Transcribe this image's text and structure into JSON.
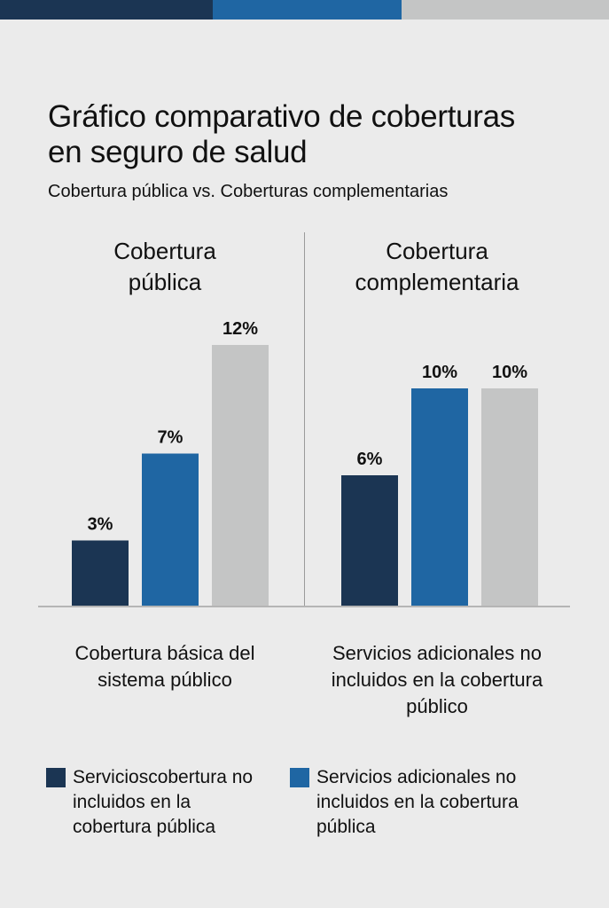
{
  "colors": {
    "dark": "#1b3553",
    "blue": "#1f66a3",
    "gray": "#c4c5c5"
  },
  "header": {
    "title": "Gráfico comparativo de coberturas en seguro de salud",
    "subtitle": "Cobertura pública vs. Coberturas complementarias"
  },
  "chart_data": [
    {
      "type": "bar",
      "title": "Cobertura pública",
      "categories": [
        "Cobertura básica del sistema público"
      ],
      "values": [
        3,
        7,
        12
      ],
      "labels": [
        "3%",
        "7%",
        "12%"
      ],
      "colors": [
        "#1b3553",
        "#1f66a3",
        "#c4c5c5"
      ],
      "ylim": [
        0,
        12
      ],
      "grid": false
    },
    {
      "type": "bar",
      "title": "Cobertura complementaria",
      "categories": [
        "Servicios adicionales no incluidos en la cobertura público"
      ],
      "values": [
        6,
        10,
        10
      ],
      "labels": [
        "6%",
        "10%",
        "10%"
      ],
      "colors": [
        "#1b3553",
        "#1f66a3",
        "#c4c5c5"
      ],
      "ylim": [
        0,
        12
      ],
      "grid": false
    }
  ],
  "legend": [
    {
      "label": "Servicioscobertura no incluidos en la cobertura pública",
      "color": "#1b3553"
    },
    {
      "label": "Servicios adicionales no incluidos en la cobertura pública",
      "color": "#1f66a3"
    }
  ]
}
